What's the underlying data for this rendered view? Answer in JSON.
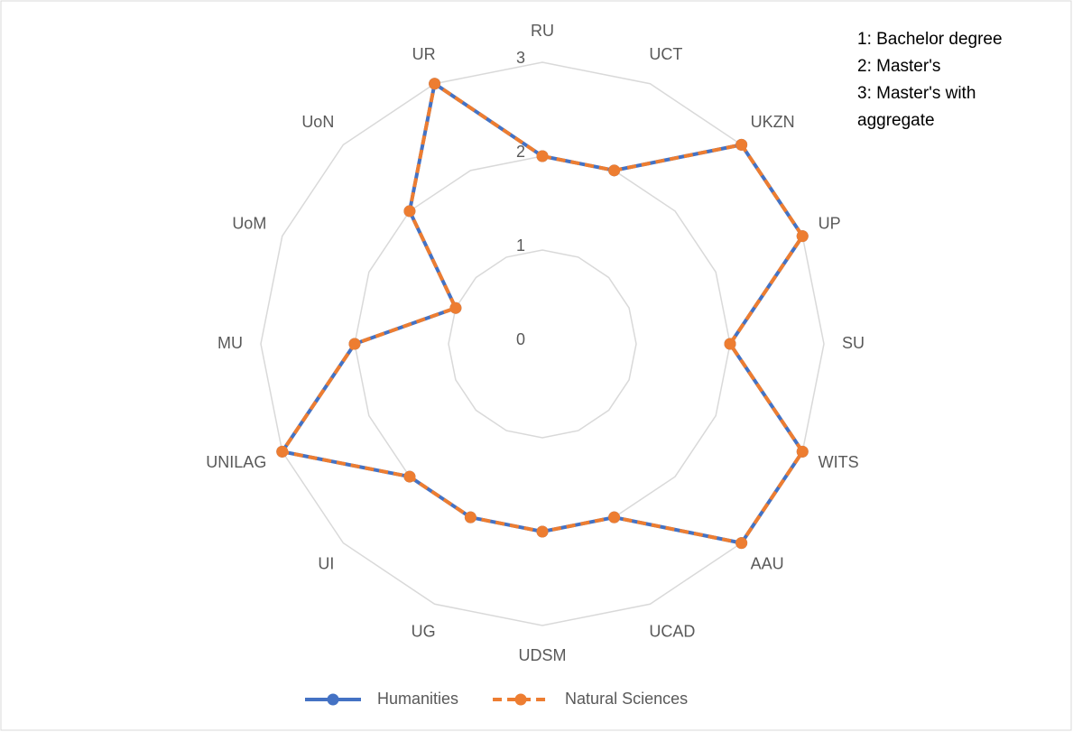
{
  "chart_data": {
    "type": "radar",
    "categories": [
      "RU",
      "UCT",
      "UKZN",
      "UP",
      "SU",
      "WITS",
      "AAU",
      "UCAD",
      "UDSM",
      "UG",
      "UI",
      "UNILAG",
      "MU",
      "UoM",
      "UoN",
      "UR"
    ],
    "series": [
      {
        "name": "Humanities",
        "color": "#4472c4",
        "values": [
          2,
          2,
          3,
          3,
          2,
          3,
          3,
          2,
          2,
          2,
          2,
          3,
          2,
          1,
          2,
          3
        ]
      },
      {
        "name": "Natural Sciences",
        "color": "#ed7d31",
        "values": [
          2,
          2,
          3,
          3,
          2,
          3,
          3,
          2,
          2,
          2,
          2,
          3,
          2,
          1,
          2,
          3
        ]
      }
    ],
    "ylim": [
      0,
      3
    ],
    "yticks": [
      0,
      1,
      2,
      3
    ],
    "grid": true,
    "legend": "bottom",
    "annotation": [
      "1: Bachelor degree",
      "2: Master's",
      "3: Master's with",
      "aggregate"
    ]
  }
}
